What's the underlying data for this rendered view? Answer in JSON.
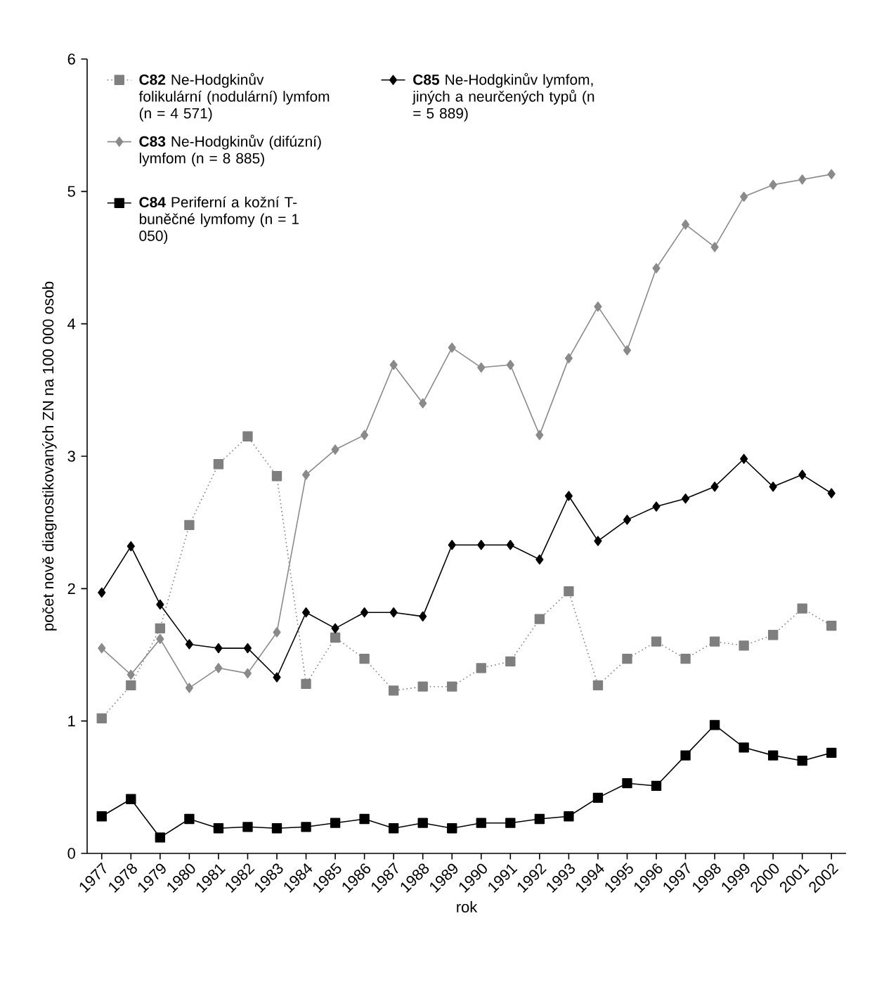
{
  "chart_data": {
    "type": "line",
    "xlabel": "rok",
    "ylabel": "počet nově diagnostikovaných ZN na 100 000 osob",
    "categories": [
      "1977",
      "1978",
      "1979",
      "1980",
      "1981",
      "1982",
      "1983",
      "1984",
      "1985",
      "1986",
      "1987",
      "1988",
      "1989",
      "1990",
      "1991",
      "1992",
      "1993",
      "1994",
      "1995",
      "1996",
      "1997",
      "1998",
      "1999",
      "2000",
      "2001",
      "2002"
    ],
    "ylim": [
      0,
      6
    ],
    "yticks": [
      0,
      1,
      2,
      3,
      4,
      5,
      6
    ],
    "grid": false,
    "legend": "top left",
    "series": [
      {
        "name": "**C82** Ne-Hodgkinův folikulární (nodulární) lymfom (n = 4 571)",
        "color": "#7f7f7f",
        "marker": "square",
        "line_style": "dotted",
        "values": [
          1.02,
          1.27,
          1.7,
          2.48,
          2.94,
          3.15,
          2.85,
          1.28,
          1.63,
          1.47,
          1.23,
          1.26,
          1.26,
          1.4,
          1.45,
          1.77,
          1.98,
          1.27,
          1.47,
          1.6,
          1.47,
          1.6,
          1.57,
          1.65,
          1.85,
          1.72
        ]
      },
      {
        "name": "**C83** Ne-Hodgkinův (difúzní) lymfom (n = 8 885)",
        "color": "#8a8a8a",
        "marker": "diamond",
        "line_style": "solid",
        "values": [
          1.55,
          1.35,
          1.62,
          1.25,
          1.4,
          1.36,
          1.67,
          2.86,
          3.05,
          3.16,
          3.69,
          3.4,
          3.82,
          3.67,
          3.69,
          3.16,
          3.74,
          4.13,
          3.8,
          4.42,
          4.75,
          4.58,
          4.96,
          5.05,
          5.09,
          5.13
        ]
      },
      {
        "name": "**C84** Periferní a kožní T-buněčné lymfomy (n = 1 050)",
        "color": "#000000",
        "marker": "square",
        "line_style": "solid",
        "values": [
          0.28,
          0.41,
          0.12,
          0.26,
          0.19,
          0.2,
          0.19,
          0.2,
          0.23,
          0.26,
          0.19,
          0.23,
          0.19,
          0.23,
          0.23,
          0.26,
          0.28,
          0.42,
          0.53,
          0.51,
          0.74,
          0.97,
          0.8,
          0.74,
          0.7,
          0.76
        ]
      },
      {
        "name": "**C85** Ne-Hodgkinův lymfom, jiných a neurčených typů (n = 5 889)",
        "color": "#000000",
        "marker": "diamond",
        "line_style": "solid",
        "values": [
          1.97,
          2.32,
          1.88,
          1.58,
          1.55,
          1.55,
          1.33,
          1.82,
          1.7,
          1.82,
          1.82,
          1.79,
          2.33,
          2.33,
          2.33,
          2.22,
          2.7,
          2.36,
          2.52,
          2.62,
          2.68,
          2.77,
          2.98,
          2.77,
          2.86,
          2.72
        ]
      }
    ]
  }
}
